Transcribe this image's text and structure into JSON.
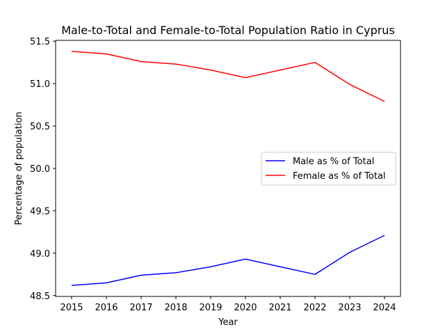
{
  "chart_data": {
    "type": "line",
    "title": "Male-to-Total and Female-to-Total Population Ratio in Cyprus",
    "xlabel": "Year",
    "ylabel": "Percentage of population",
    "x": [
      "2015",
      "2016",
      "2017",
      "2018",
      "2019",
      "2020",
      "2021",
      "2022",
      "2023",
      "2024"
    ],
    "ylim": [
      48.49,
      51.51
    ],
    "yticks": [
      "48.5",
      "49.0",
      "49.5",
      "50.0",
      "50.5",
      "51.0",
      "51.5"
    ],
    "grid": false,
    "legend_position": "center-right",
    "series": [
      {
        "name": "Male as % of Total",
        "color": "#0000ff",
        "values": [
          48.62,
          48.65,
          48.74,
          48.77,
          48.84,
          48.93,
          48.84,
          48.75,
          49.01,
          49.21
        ]
      },
      {
        "name": "Female as % of Total",
        "color": "#ff0000",
        "values": [
          51.38,
          51.35,
          51.26,
          51.23,
          51.16,
          51.07,
          51.16,
          51.25,
          50.99,
          50.79
        ]
      }
    ]
  }
}
